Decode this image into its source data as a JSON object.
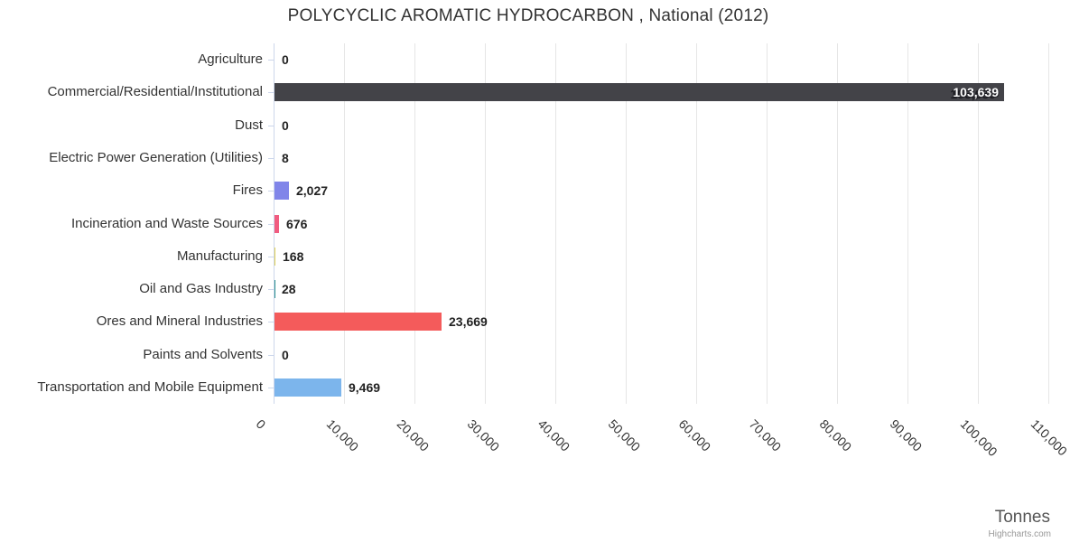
{
  "chart_data": {
    "type": "bar",
    "orientation": "horizontal",
    "title": "POLYCYCLIC AROMATIC HYDROCARBON , National (2012)",
    "categories": [
      "Agriculture",
      "Commercial/Residential/Institutional",
      "Dust",
      "Electric Power Generation (Utilities)",
      "Fires",
      "Incineration and Waste Sources",
      "Manufacturing",
      "Oil and Gas Industry",
      "Ores and Mineral Industries",
      "Paints and Solvents",
      "Transportation and Mobile Equipment"
    ],
    "values": [
      0,
      103639,
      0,
      8,
      2027,
      676,
      168,
      28,
      23669,
      0,
      9469
    ],
    "value_labels": [
      "0",
      "103,639",
      "0",
      "8",
      "2,027",
      "676",
      "168",
      "28",
      "23,669",
      "0",
      "9,469"
    ],
    "point_colors": [
      "#7cb5ec",
      "#434348",
      "#90ed7d",
      "#f7a35c",
      "#8085e9",
      "#f15c80",
      "#e4d354",
      "#2b908f",
      "#f45b5b",
      "#91e8e1",
      "#7cb5ec"
    ],
    "inside_label_index": 1,
    "xlabel": "Tonnes",
    "xlim": [
      0,
      110000
    ],
    "x_ticks": [
      0,
      10000,
      20000,
      30000,
      40000,
      50000,
      60000,
      70000,
      80000,
      90000,
      100000,
      110000
    ],
    "x_tick_labels": [
      "0",
      "10,000",
      "20,000",
      "30,000",
      "40,000",
      "50,000",
      "60,000",
      "70,000",
      "80,000",
      "90,000",
      "100,000",
      "110,000"
    ],
    "grid": true,
    "legend_position": "none",
    "credits": "Highcharts.com"
  },
  "colors": {
    "background": "#ffffff",
    "grid": "#e6e6e6",
    "axis_line": "#ccd6eb",
    "title": "#333333",
    "category_label": "#333333",
    "tick_label": "#333333",
    "value_label": "#222222",
    "axis_title": "#555555",
    "credits": "#999999"
  }
}
